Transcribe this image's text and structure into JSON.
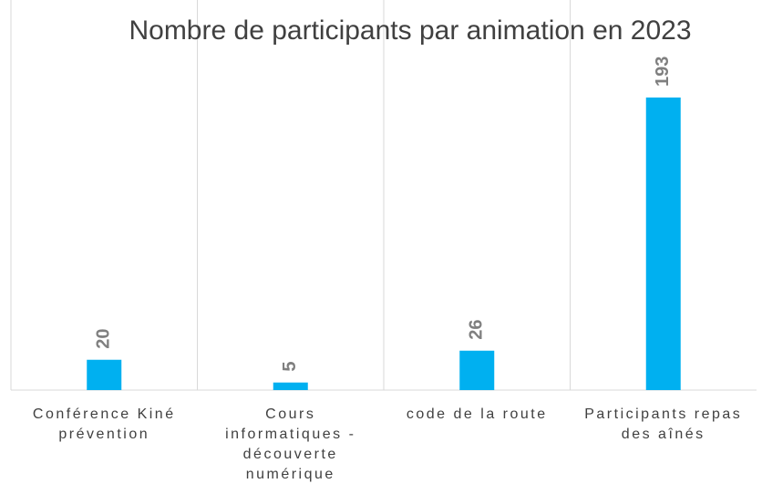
{
  "chart_data": {
    "type": "bar",
    "title": "Nombre de participants par animation en 2023",
    "categories": [
      "Conférence Kiné prévention",
      "Cours informatiques - découverte numérique",
      "code de la route",
      "Participants repas des aînés"
    ],
    "values": [
      20,
      5,
      26,
      193
    ],
    "color": "#00b0f0"
  }
}
